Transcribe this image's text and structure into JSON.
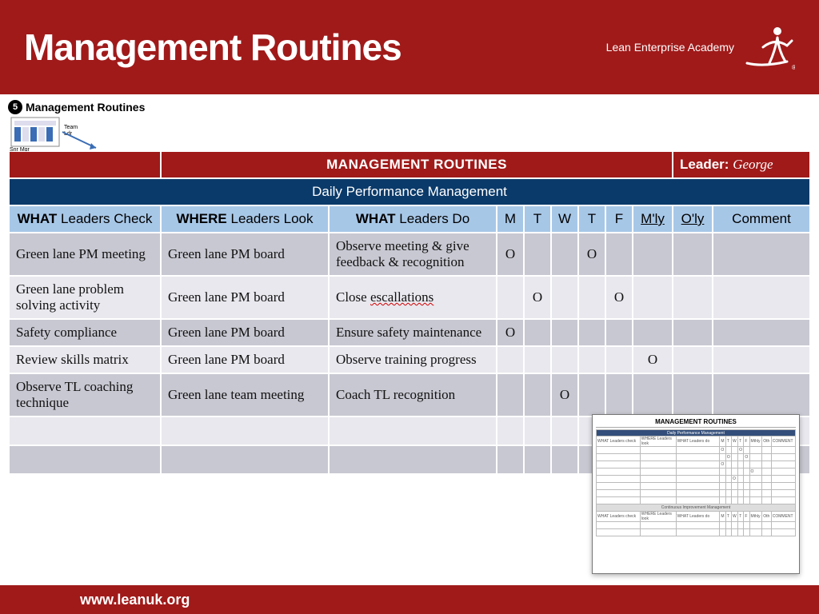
{
  "colors": {
    "brand_red": "#a01a1a",
    "brand_blue": "#0a3a6a",
    "head_blue": "#a7c7e7",
    "row_alt": "#e8e8ee",
    "row_nor": "#c8c8d2",
    "white": "#ffffff"
  },
  "header": {
    "title": "Management Routines",
    "logo_text": "Lean Enterprise Academy"
  },
  "sub": {
    "badge_number": "5",
    "badge_label": "Management Routines"
  },
  "redbar": {
    "title": "MANAGEMENT ROUTINES",
    "leader_label": "Leader:",
    "leader_name": "George"
  },
  "bluebar": {
    "title": "Daily Performance Management"
  },
  "columns": {
    "what_b": "WHAT",
    "what_r": " Leaders Check",
    "where_b": "WHERE",
    "where_r": " Leaders Look",
    "do_b": "WHAT",
    "do_r": " Leaders Do",
    "d1": "M",
    "d2": "T",
    "d3": "W",
    "d4": "T",
    "d5": "F",
    "mly": "M'ly",
    "oly": "O'ly",
    "comment": "Comment"
  },
  "rows": [
    {
      "what": "Green lane PM meeting",
      "where": "Green lane PM board",
      "do": "Observe meeting & give feedback & recognition",
      "marks": [
        "O",
        "",
        "",
        "O",
        "",
        "",
        "",
        ""
      ]
    },
    {
      "what": "Green lane problem solving activity",
      "where": "Green lane PM board",
      "do_prefix": "Close ",
      "do_underlined": "escallations",
      "marks": [
        "",
        "O",
        "",
        "",
        "O",
        "",
        "",
        ""
      ]
    },
    {
      "what": "Safety compliance",
      "where": "Green lane PM board",
      "do": "Ensure safety maintenance",
      "marks": [
        "O",
        "",
        "",
        "",
        "",
        "",
        "",
        ""
      ]
    },
    {
      "what": "Review skills matrix",
      "where": "Green lane PM board",
      "do": "Observe training progress",
      "marks": [
        "",
        "",
        "",
        "",
        "",
        "O",
        "",
        ""
      ]
    },
    {
      "what": "Observe TL coaching technique",
      "where": "Green lane team meeting",
      "do": "Coach TL recognition",
      "marks": [
        "",
        "",
        "O",
        "",
        "",
        "",
        "",
        ""
      ]
    },
    {
      "what": "",
      "where": "",
      "do": "",
      "marks": [
        "",
        "",
        "",
        "",
        "",
        "",
        "",
        ""
      ]
    },
    {
      "what": "",
      "where": "",
      "do": "",
      "marks": [
        "",
        "",
        "",
        "",
        "",
        "",
        "",
        ""
      ]
    }
  ],
  "overlay": {
    "title": "MANAGEMENT ROUTINES",
    "section2": "Continuous Improvement Management"
  },
  "footer": {
    "url": "www.leanuk.org"
  }
}
